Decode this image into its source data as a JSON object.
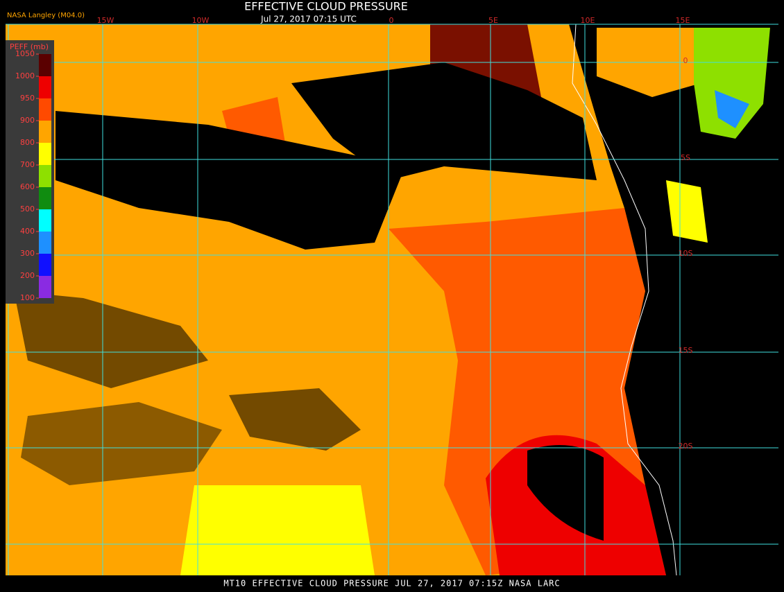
{
  "header": {
    "title": "EFFECTIVE CLOUD PRESSURE",
    "subtitle": "Jul 27, 2017 07:15 UTC",
    "source": "NASA Langley (M04.0)"
  },
  "graticule": {
    "longitudes": [
      "15W",
      "10W",
      "0",
      "5E",
      "10E",
      "15E"
    ],
    "latitudes": [
      "0",
      "5S",
      "10S",
      "15S",
      "20S"
    ]
  },
  "colorbar": {
    "label": "PEFF (mb)",
    "ticks": [
      1050,
      1000,
      950,
      900,
      800,
      700,
      600,
      500,
      400,
      300,
      200,
      100
    ],
    "colors": [
      "#5a0000",
      "#ee0000",
      "#ff4a00",
      "#ffa500",
      "#ffff00",
      "#8ee000",
      "#108c10",
      "#00ffff",
      "#1e90ff",
      "#1010ff",
      "#8a2be2"
    ]
  },
  "footer": "MT10  EFFECTIVE CLOUD PRESSURE   JUL 27, 2017 07:15Z   NASA LARC"
}
